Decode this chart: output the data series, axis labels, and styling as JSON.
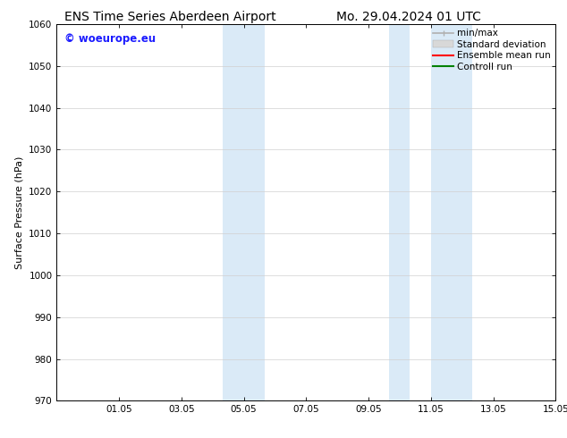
{
  "title_left": "ENS Time Series Aberdeen Airport",
  "title_right": "Mo. 29.04.2024 01 UTC",
  "ylabel": "Surface Pressure (hPa)",
  "ylim": [
    970,
    1060
  ],
  "yticks": [
    970,
    980,
    990,
    1000,
    1010,
    1020,
    1030,
    1040,
    1050,
    1060
  ],
  "xtick_labels": [
    "01.05",
    "03.05",
    "05.05",
    "07.05",
    "09.05",
    "11.05",
    "13.05",
    "15.05"
  ],
  "xtick_positions": [
    2,
    4,
    6,
    8,
    10,
    12,
    14,
    16
  ],
  "xlim": [
    0,
    16
  ],
  "watermark": "© woeurope.eu",
  "watermark_color": "#1a1aff",
  "shaded_bands": [
    {
      "xmin": 5.33,
      "xmax": 6.67,
      "color": "#daeaf7"
    },
    {
      "xmin": 10.67,
      "xmax": 11.33,
      "color": "#daeaf7"
    },
    {
      "xmin": 12.0,
      "xmax": 13.33,
      "color": "#daeaf7"
    }
  ],
  "legend_items": [
    {
      "label": "min/max",
      "color": "#b0b0b0",
      "lw": 1.2,
      "style": "solid",
      "type": "line_with_caps"
    },
    {
      "label": "Standard deviation",
      "color": "#d8d8d8",
      "lw": 5,
      "style": "solid",
      "type": "patch"
    },
    {
      "label": "Ensemble mean run",
      "color": "#ff0000",
      "lw": 1.5,
      "style": "solid",
      "type": "line"
    },
    {
      "label": "Controll run",
      "color": "#008000",
      "lw": 1.5,
      "style": "solid",
      "type": "line"
    }
  ],
  "bg_color": "#ffffff",
  "plot_bg_color": "#ffffff",
  "grid_color": "#d0d0d0",
  "title_fontsize": 10,
  "axis_label_fontsize": 8,
  "tick_fontsize": 7.5,
  "legend_fontsize": 7.5
}
